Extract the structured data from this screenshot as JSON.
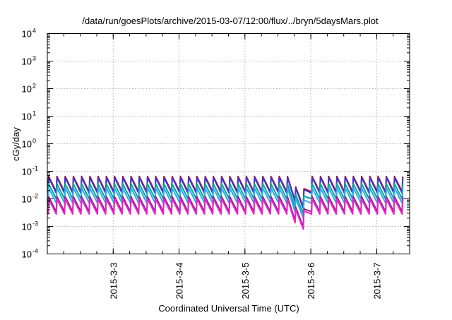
{
  "chart_data": {
    "type": "line",
    "title": "/data/run/goesPlots/archive/2015-03-07/12:00/flux/../bryn/5daysMars.plot",
    "xlabel": "Coordinated Universal Time (UTC)",
    "ylabel": "cGy/day",
    "yscale": "log",
    "ylim": [
      0.0001,
      10000
    ],
    "xlim": [
      "2015-03-02 00:00",
      "2015-03-07 12:00"
    ],
    "grid": true,
    "legend": "none",
    "x_tick_labels": [
      "2015-3-3",
      "2015-3-4",
      "2015-3-5",
      "2015-3-6",
      "2015-3-7"
    ],
    "y_tick_labels": [
      {
        "base": "10",
        "exp": "-4"
      },
      {
        "base": "10",
        "exp": "-3"
      },
      {
        "base": "10",
        "exp": "-2"
      },
      {
        "base": "10",
        "exp": "-1"
      },
      {
        "base": "10",
        "exp": "0"
      },
      {
        "base": "10",
        "exp": "1"
      },
      {
        "base": "10",
        "exp": "2"
      },
      {
        "base": "10",
        "exp": "3"
      },
      {
        "base": "10",
        "exp": "4"
      }
    ],
    "sawtooth_period_hours": 3,
    "dip": {
      "start": "2015-03-05 17:00",
      "minimum": "2015-03-05 20:30",
      "end": "2015-03-05 22:30",
      "min_factor": 0.13
    },
    "series": [
      {
        "color": "#cc0000",
        "peak": 0.065,
        "trough": 0.018
      },
      {
        "color": "#3838d8",
        "peak": 0.06,
        "trough": 0.016
      },
      {
        "color": "#00aa99",
        "peak": 0.035,
        "trough": 0.01
      },
      {
        "color": "#33aaee",
        "peak": 0.025,
        "trough": 0.007
      },
      {
        "color": "#882288",
        "peak": 0.012,
        "trough": 0.0034
      },
      {
        "color": "#ee22cc",
        "peak": 0.01,
        "trough": 0.0028
      }
    ]
  }
}
